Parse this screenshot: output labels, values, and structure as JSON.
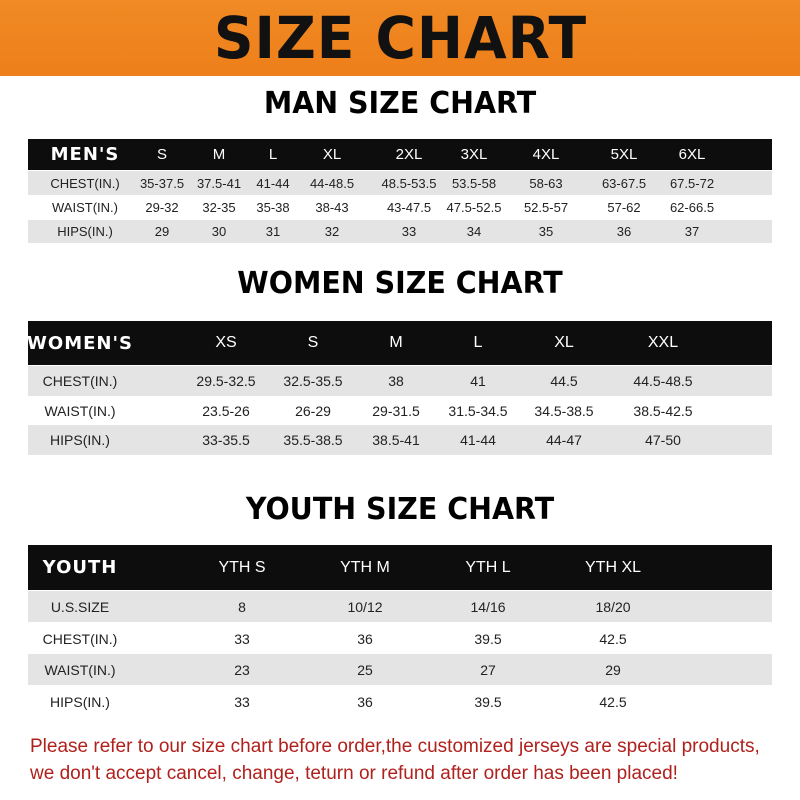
{
  "banner_title": "SIZE CHART",
  "men": {
    "title": "MAN SIZE CHART",
    "header": [
      "MEN'S",
      "S",
      "M",
      "L",
      "XL",
      "2XL",
      "3XL",
      "4XL",
      "5XL",
      "6XL"
    ],
    "rows": [
      [
        "CHEST(IN.)",
        "35-37.5",
        "37.5-41",
        "41-44",
        "44-48.5",
        "48.5-53.5",
        "53.5-58",
        "58-63",
        "63-67.5",
        "67.5-72"
      ],
      [
        "WAIST(IN.)",
        "29-32",
        "32-35",
        "35-38",
        "38-43",
        "43-47.5",
        "47.5-52.5",
        "52.5-57",
        "57-62",
        "62-66.5"
      ],
      [
        "HIPS(IN.)",
        "29",
        "30",
        "31",
        "32",
        "33",
        "34",
        "35",
        "36",
        "37"
      ]
    ]
  },
  "women": {
    "title": "WOMEN SIZE CHART",
    "header": [
      "WOMEN'S",
      "XS",
      "S",
      "M",
      "L",
      "XL",
      "XXL"
    ],
    "rows": [
      [
        "CHEST(IN.)",
        "29.5-32.5",
        "32.5-35.5",
        "38",
        "41",
        "44.5",
        "44.5-48.5"
      ],
      [
        "WAIST(IN.)",
        "23.5-26",
        "26-29",
        "29-31.5",
        "31.5-34.5",
        "34.5-38.5",
        "38.5-42.5"
      ],
      [
        "HIPS(IN.)",
        "33-35.5",
        "35.5-38.5",
        "38.5-41",
        "41-44",
        "44-47",
        "47-50"
      ]
    ]
  },
  "youth": {
    "title": "YOUTH SIZE CHART",
    "header": [
      "YOUTH",
      "YTH S",
      "YTH M",
      "YTH L",
      "YTH XL"
    ],
    "rows": [
      [
        "U.S.SIZE",
        "8",
        "10/12",
        "14/16",
        "18/20"
      ],
      [
        "CHEST(IN.)",
        "33",
        "36",
        "39.5",
        "42.5"
      ],
      [
        "WAIST(IN.)",
        "23",
        "25",
        "27",
        "29"
      ],
      [
        "HIPS(IN.)",
        "33",
        "36",
        "39.5",
        "42.5"
      ]
    ]
  },
  "notice": [
    "Please refer to our size chart before order,the customized jerseys are special products,",
    "we don't accept cancel, change, teturn or refund after order has been placed!"
  ],
  "colors": {
    "banner": "#ee8220",
    "header_row": "#0d0d0d",
    "notice": "#b0201c"
  }
}
